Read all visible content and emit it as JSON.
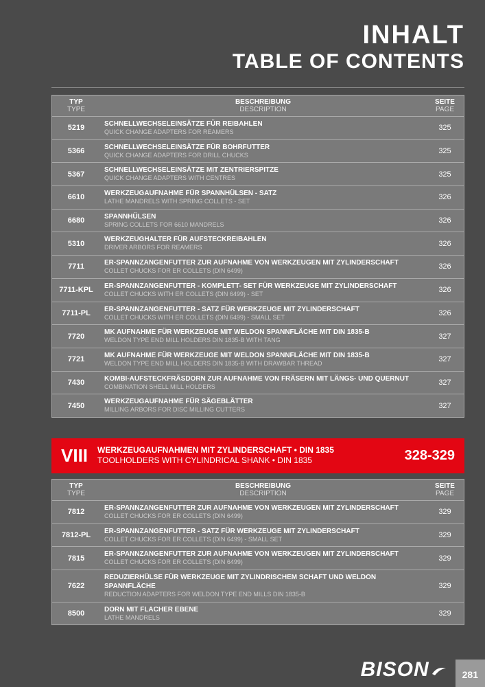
{
  "title": {
    "de": "INHALT",
    "en": "TABLE OF CONTENTS"
  },
  "headers": {
    "type": {
      "l1": "TYP",
      "l2": "TYPE"
    },
    "desc": {
      "l1": "BESCHREIBUNG",
      "l2": "DESCRIPTION"
    },
    "page": {
      "l1": "SEITE",
      "l2": "PAGE"
    }
  },
  "table1": [
    {
      "type": "5219",
      "d1": "SCHNELLWECHSELEINSÄTZE FÜR REIBAHLEN",
      "d2": "QUICK CHANGE ADAPTERS FOR REAMERS",
      "page": "325"
    },
    {
      "type": "5366",
      "d1": "SCHNELLWECHSELEINSÄTZE FÜR BOHRFUTTER",
      "d2": "QUICK CHANGE ADAPTERS FOR DRILL CHUCKS",
      "page": "325"
    },
    {
      "type": "5367",
      "d1": "SCHNELLWECHSELEINSÄTZE MIT ZENTRIERSPITZE",
      "d2": "QUICK CHANGE ADAPTERS WITH CENTRES",
      "page": "325"
    },
    {
      "type": "6610",
      "d1": "WERKZEUGAUFNAHME FÜR SPANNHÜLSEN - SATZ",
      "d2": "LATHE MANDRELS WITH SPRING COLLETS - SET",
      "page": "326"
    },
    {
      "type": "6680",
      "d1": "SPANNHÜLSEN",
      "d2": "SPRING COLLETS FOR 6610 MANDRELS",
      "page": "326"
    },
    {
      "type": "5310",
      "d1": "WERKZEUGHALTER FÜR AUFSTECKREIBAHLEN",
      "d2": "DRIVER ARBORS FOR REAMERS",
      "page": "326"
    },
    {
      "type": "7711",
      "d1": "ER-SPANNZANGENFUTTER ZUR AUFNAHME VON WERKZEUGEN MIT ZYLINDERSCHAFT",
      "d2": "COLLET CHUCKS FOR ER COLLETS (DIN 6499)",
      "page": "326"
    },
    {
      "type": "7711-KPL",
      "d1": "ER-SPANNZANGENFUTTER - KOMPLETT- SET FÜR WERKZEUGE MIT ZYLINDERSCHAFT",
      "d2": "COLLET CHUCKS WITH ER COLLETS (DIN 6499) - SET",
      "page": "326"
    },
    {
      "type": "7711-PL",
      "d1": "ER-SPANNZANGENFUTTER - SATZ FÜR WERKZEUGE MIT ZYLINDERSCHAFT",
      "d2": "COLLET CHUCKS WITH ER COLLETS (DIN 6499) - SMALL SET",
      "page": "326"
    },
    {
      "type": "7720",
      "d1": "MK AUFNAHME FÜR WERKZEUGE MIT WELDON SPANNFLÄCHE MIT DIN 1835-B",
      "d2": "WELDON TYPE END MILL HOLDERS DIN 1835-B WITH TANG",
      "page": "327"
    },
    {
      "type": "7721",
      "d1": "MK AUFNAHME FÜR WERKZEUGE MIT WELDON SPANNFLÄCHE MIT DIN 1835-B",
      "d2": "WELDON TYPE END MILL HOLDERS DIN 1835-B WITH DRAWBAR THREAD",
      "page": "327"
    },
    {
      "type": "7430",
      "d1": "KOMBI-AUFSTECKFRÄSDORN ZUR AUFNAHME VON FRÄSERN MIT LÄNGS- UND QUERNUT",
      "d2": "COMBINATION SHELL MILL HOLDERS",
      "page": "327"
    },
    {
      "type": "7450",
      "d1": "WERKZEUGAUFNAHME FÜR SÄGEBLÄTTER",
      "d2": "MILLING ARBORS FOR DISC MILLING CUTTERS",
      "page": "327"
    }
  ],
  "section": {
    "roman": "VIII",
    "s1": "WERKZEUGAUFNAHMEN MIT ZYLINDERSCHAFT • DIN 1835",
    "s2": "TOOLHOLDERS WITH CYLINDRICAL SHANK • DIN 1835",
    "range": "328-329"
  },
  "table2": [
    {
      "type": "7812",
      "d1": "ER-SPANNZANGENFUTTER ZUR AUFNAHME VON WERKZEUGEN MIT ZYLINDERSCHAFT",
      "d2": "COLLET CHUCKS FOR ER COLLETS (DIN 6499)",
      "page": "329"
    },
    {
      "type": "7812-PL",
      "d1": "ER-SPANNZANGENFUTTER - SATZ FÜR WERKZEUGE MIT ZYLINDERSCHAFT",
      "d2": "COLLET CHUCKS FOR ER COLLETS (DIN 6499) - SMALL SET",
      "page": "329"
    },
    {
      "type": "7815",
      "d1": "ER-SPANNZANGENFUTTER ZUR AUFNAHME VON WERKZEUGEN MIT ZYLINDERSCHAFT",
      "d2": "COLLET CHUCKS FOR ER COLLETS (DIN 6499)",
      "page": "329"
    },
    {
      "type": "7622",
      "d1": "REDUZIERHÜLSE FÜR WERKZEUGE MIT ZYLINDRISCHEM SCHAFT UND WELDON SPANNFLÄCHE",
      "d2": "REDUCTION ADAPTERS FOR WELDON TYPE END MILLS DIN 1835-B",
      "page": "329"
    },
    {
      "type": "8500",
      "d1": "DORN MIT FLACHER EBENE",
      "d2": "LATHE MANDRELS",
      "page": "329"
    }
  ],
  "brand": "BISON",
  "pageNumber": "281"
}
